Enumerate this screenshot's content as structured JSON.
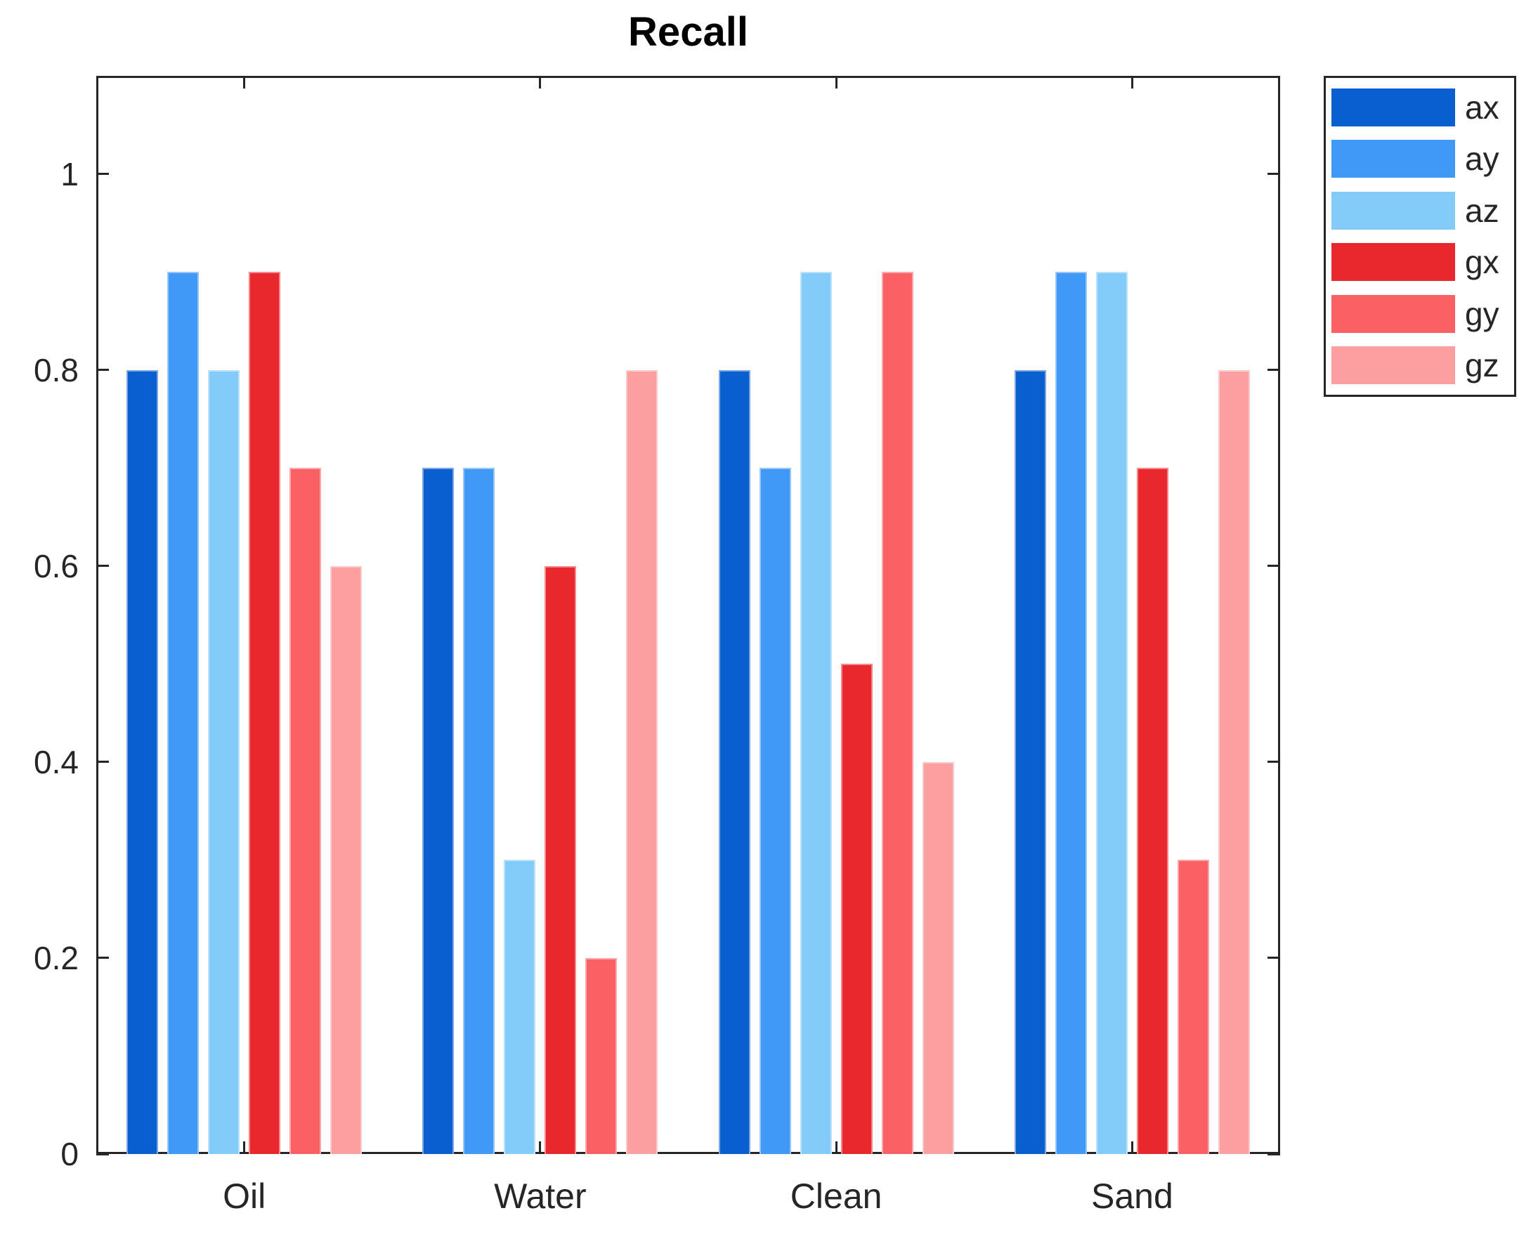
{
  "title": "Recall",
  "chart_data": {
    "type": "bar",
    "title": "Recall",
    "categories": [
      "Oil",
      "Water",
      "Clean",
      "Sand"
    ],
    "series": [
      {
        "name": "ax",
        "color": "#0a5fce",
        "values": [
          0.8,
          0.7,
          0.8,
          0.8
        ]
      },
      {
        "name": "ay",
        "color": "#4099f5",
        "values": [
          0.9,
          0.7,
          0.7,
          0.9
        ]
      },
      {
        "name": "az",
        "color": "#83cbf9",
        "values": [
          0.8,
          0.3,
          0.9,
          0.9
        ]
      },
      {
        "name": "gx",
        "color": "#e8282d",
        "values": [
          0.9,
          0.6,
          0.5,
          0.7
        ]
      },
      {
        "name": "gy",
        "color": "#fa6165",
        "values": [
          0.7,
          0.2,
          0.9,
          0.3
        ]
      },
      {
        "name": "gz",
        "color": "#fb9fa1",
        "values": [
          0.6,
          0.8,
          0.4,
          0.8
        ]
      }
    ],
    "xlabel": "",
    "ylabel": "",
    "ylim": [
      0,
      1.1
    ],
    "y_ticks": [
      0,
      0.2,
      0.4,
      0.6,
      0.8,
      1
    ],
    "y_tick_labels": [
      "0",
      "0.2",
      "0.4",
      "0.6",
      "0.8",
      "1"
    ],
    "grid": false,
    "legend_position": "northeast-outside",
    "axis_color": "#262626",
    "background_color": "#ffffff"
  }
}
